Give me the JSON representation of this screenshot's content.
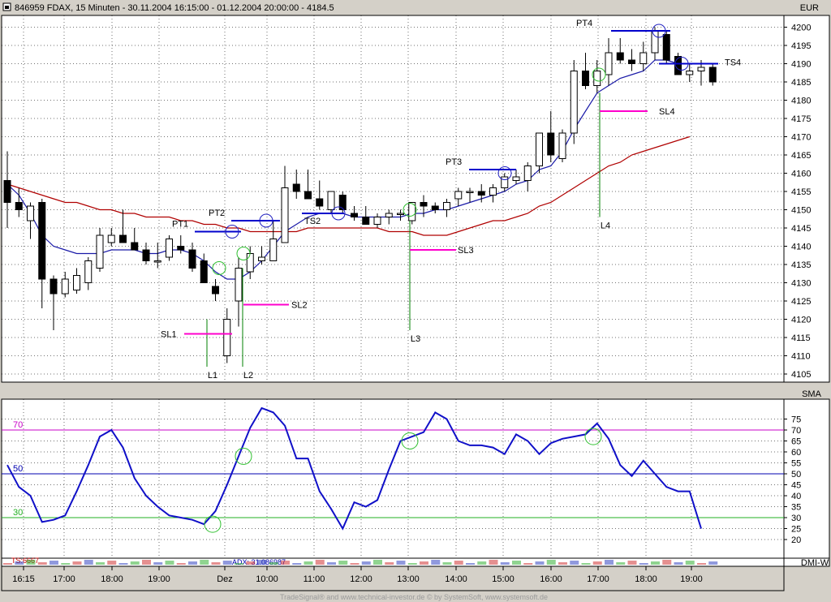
{
  "header": {
    "title": "846959  FDAX, 15 Minuten - 30.11.2004 16:15:00 - 01.12.2004 20:00:00 - 4184.5",
    "currency": "EUR",
    "indicator": "SMA",
    "bottom_indicator": "DMI-W",
    "mini_labels": [
      "TS:6667",
      "ADX: 31.086987"
    ]
  },
  "footer": "TradeSignal® and www.technical-investor.de © by SystemSoft, www.systemsoft.de",
  "colors": {
    "plot_bg": "#ffffff",
    "grid": "#000000",
    "sma_fast": "#1a1aa8",
    "sma_slow": "#b00000",
    "stop_loss": "#ff00cc",
    "profit_target": "#0000cc",
    "entry_line": "#008000",
    "rsi_line": "#1010c8",
    "level70": "#c800c8",
    "level50": "#0000b0",
    "level30": "#20b020",
    "circle_green": "#30c030",
    "circle_blue": "#2020c0"
  },
  "chart_data": [
    {
      "type": "candlestick",
      "title": "846959  FDAX, 15 Minuten",
      "y_unit": "EUR",
      "ylim": [
        4103,
        4205
      ],
      "y_ticks": [
        4105,
        4110,
        4115,
        4120,
        4125,
        4130,
        4135,
        4140,
        4145,
        4150,
        4155,
        4160,
        4165,
        4170,
        4175,
        4180,
        4185,
        4190,
        4195,
        4200
      ],
      "x_ticks": [
        "16:15",
        "17:00",
        "18:00",
        "19:00",
        "Dez",
        "10:00",
        "11:00",
        "12:00",
        "13:00",
        "14:00",
        "15:00",
        "16:00",
        "17:00",
        "18:00",
        "19:00"
      ],
      "candles": [
        {
          "o": 4158,
          "h": 4166,
          "l": 4145,
          "c": 4152
        },
        {
          "o": 4152,
          "h": 4156,
          "l": 4148,
          "c": 4150
        },
        {
          "o": 4147,
          "h": 4152,
          "l": 4142,
          "c": 4151
        },
        {
          "o": 4152,
          "h": 4153,
          "l": 4123,
          "c": 4131
        },
        {
          "o": 4131,
          "h": 4132,
          "l": 4117,
          "c": 4127
        },
        {
          "o": 4127,
          "h": 4133,
          "l": 4126,
          "c": 4131
        },
        {
          "o": 4128,
          "h": 4134,
          "l": 4127,
          "c": 4132
        },
        {
          "o": 4130,
          "h": 4137,
          "l": 4128,
          "c": 4136
        },
        {
          "o": 4134,
          "h": 4145,
          "l": 4133,
          "c": 4143
        },
        {
          "o": 4141,
          "h": 4145,
          "l": 4140,
          "c": 4143
        },
        {
          "o": 4143,
          "h": 4150,
          "l": 4141,
          "c": 4141
        },
        {
          "o": 4141,
          "h": 4145,
          "l": 4140,
          "c": 4139
        },
        {
          "o": 4139,
          "h": 4141,
          "l": 4135,
          "c": 4136
        },
        {
          "o": 4136,
          "h": 4141,
          "l": 4134,
          "c": 4136
        },
        {
          "o": 4137,
          "h": 4143,
          "l": 4136,
          "c": 4142
        },
        {
          "o": 4140,
          "h": 4143,
          "l": 4138,
          "c": 4139
        },
        {
          "o": 4139,
          "h": 4141,
          "l": 4133,
          "c": 4134
        },
        {
          "o": 4136,
          "h": 4138,
          "l": 4130,
          "c": 4130
        },
        {
          "o": 4129,
          "h": 4131,
          "l": 4125,
          "c": 4127
        },
        {
          "o": 4110,
          "h": 4123,
          "l": 4108,
          "c": 4120
        },
        {
          "o": 4125,
          "h": 4137,
          "l": 4118,
          "c": 4134
        },
        {
          "o": 4133,
          "h": 4140,
          "l": 4131,
          "c": 4138
        },
        {
          "o": 4136,
          "h": 4140,
          "l": 4135,
          "c": 4137
        },
        {
          "o": 4136,
          "h": 4147,
          "l": 4136,
          "c": 4142
        },
        {
          "o": 4141,
          "h": 4162,
          "l": 4141,
          "c": 4156
        },
        {
          "o": 4157,
          "h": 4161,
          "l": 4153,
          "c": 4155
        },
        {
          "o": 4155,
          "h": 4161,
          "l": 4153,
          "c": 4153
        },
        {
          "o": 4153,
          "h": 4158,
          "l": 4150,
          "c": 4151
        },
        {
          "o": 4150,
          "h": 4155,
          "l": 4149,
          "c": 4155
        },
        {
          "o": 4154,
          "h": 4155,
          "l": 4149,
          "c": 4150
        },
        {
          "o": 4149,
          "h": 4151,
          "l": 4147,
          "c": 4148
        },
        {
          "o": 4148,
          "h": 4151,
          "l": 4146,
          "c": 4146
        },
        {
          "o": 4146,
          "h": 4149,
          "l": 4145,
          "c": 4148
        },
        {
          "o": 4148,
          "h": 4150,
          "l": 4146,
          "c": 4149
        },
        {
          "o": 4149,
          "h": 4150,
          "l": 4147,
          "c": 4149
        },
        {
          "o": 4147,
          "h": 4152,
          "l": 4146,
          "c": 4152
        },
        {
          "o": 4152,
          "h": 4154,
          "l": 4148,
          "c": 4151
        },
        {
          "o": 4151,
          "h": 4152,
          "l": 4149,
          "c": 4150
        },
        {
          "o": 4150,
          "h": 4153,
          "l": 4148,
          "c": 4152
        },
        {
          "o": 4153,
          "h": 4156,
          "l": 4151,
          "c": 4155
        },
        {
          "o": 4155,
          "h": 4156,
          "l": 4152,
          "c": 4155
        },
        {
          "o": 4155,
          "h": 4157,
          "l": 4152,
          "c": 4154
        },
        {
          "o": 4154,
          "h": 4157,
          "l": 4152,
          "c": 4156
        },
        {
          "o": 4156,
          "h": 4160,
          "l": 4155,
          "c": 4159
        },
        {
          "o": 4158,
          "h": 4161,
          "l": 4157,
          "c": 4159
        },
        {
          "o": 4158,
          "h": 4163,
          "l": 4155,
          "c": 4162
        },
        {
          "o": 4162,
          "h": 4171,
          "l": 4160,
          "c": 4171
        },
        {
          "o": 4171,
          "h": 4177,
          "l": 4163,
          "c": 4165
        },
        {
          "o": 4164,
          "h": 4172,
          "l": 4163,
          "c": 4171
        },
        {
          "o": 4171,
          "h": 4191,
          "l": 4168,
          "c": 4188
        },
        {
          "o": 4188,
          "h": 4193,
          "l": 4183,
          "c": 4184
        },
        {
          "o": 4184,
          "h": 4191,
          "l": 4182,
          "c": 4188
        },
        {
          "o": 4187,
          "h": 4197,
          "l": 4184,
          "c": 4193
        },
        {
          "o": 4193,
          "h": 4197,
          "l": 4190,
          "c": 4191
        },
        {
          "o": 4191,
          "h": 4194,
          "l": 4188,
          "c": 4190
        },
        {
          "o": 4190,
          "h": 4196,
          "l": 4188,
          "c": 4193
        },
        {
          "o": 4193,
          "h": 4200,
          "l": 4191,
          "c": 4199
        },
        {
          "o": 4198,
          "h": 4199,
          "l": 4190,
          "c": 4191
        },
        {
          "o": 4192,
          "h": 4193,
          "l": 4187,
          "c": 4187
        },
        {
          "o": 4187,
          "h": 4190,
          "l": 4185,
          "c": 4188
        },
        {
          "o": 4188,
          "h": 4191,
          "l": 4184,
          "c": 4189
        },
        {
          "o": 4189,
          "h": 4190,
          "l": 4184,
          "c": 4185
        }
      ],
      "sma_fast": [
        4157,
        4154,
        4149,
        4143,
        4140,
        4139,
        4138,
        4138,
        4138,
        4139,
        4139,
        4139,
        4138,
        4138,
        4139,
        4139,
        4138,
        4136,
        4133,
        4131,
        4131,
        4133,
        4136,
        4140,
        4144,
        4146,
        4148,
        4149,
        4149,
        4149,
        4148,
        4148,
        4148,
        4148,
        4148,
        4149,
        4149,
        4150,
        4150,
        4151,
        4152,
        4153,
        4154,
        4155,
        4157,
        4158,
        4161,
        4162,
        4166,
        4172,
        4177,
        4182,
        4184,
        4186,
        4187,
        4188,
        4191,
        4191,
        4190,
        4190,
        4190,
        4190
      ],
      "sma_slow": [
        4157,
        4156,
        4155,
        4154,
        4153,
        4152,
        4152,
        4151,
        4150,
        4150,
        4149,
        4149,
        4148,
        4148,
        4148,
        4147,
        4147,
        4146,
        4146,
        4145,
        4145,
        4144,
        4144,
        4144,
        4144,
        4144,
        4145,
        4145,
        4145,
        4145,
        4145,
        4145,
        4145,
        4144,
        4144,
        4144,
        4143,
        4143,
        4143,
        4144,
        4145,
        4146,
        4147,
        4147,
        4148,
        4149,
        4151,
        4152,
        4154,
        4156,
        4158,
        4160,
        4162,
        4163,
        4165,
        4166,
        4167,
        4168,
        4169,
        4170
      ],
      "trade_labels": {
        "entries": [
          "L1",
          "L2",
          "L3",
          "L4"
        ],
        "stop_loss": [
          "SL1",
          "SL2",
          "SL3",
          "SL4"
        ],
        "profit_targets": [
          "PT1",
          "PT2",
          "PT3",
          "PT4"
        ],
        "trailing_stops": [
          "TS2",
          "TS4"
        ]
      },
      "trade_levels": {
        "L1": {
          "low": 4107,
          "high": 4120
        },
        "L2": {
          "low": 4107,
          "high": 4134
        },
        "L3": {
          "low": 4117,
          "high": 4147
        },
        "L4": {
          "low": 4148,
          "high": 4182
        },
        "SL1": 4116,
        "SL2": 4124,
        "SL3": 4139,
        "SL4": 4177,
        "PT1": 4144,
        "PT2": 4147,
        "PT3": 4161,
        "PT4": 4199,
        "TS2": 4149,
        "TS4": 4190
      }
    },
    {
      "type": "line",
      "ylim": [
        15,
        80
      ],
      "y_ticks": [
        20,
        25,
        30,
        35,
        40,
        45,
        50,
        55,
        60,
        65,
        70,
        75
      ],
      "levels": [
        {
          "value": 70,
          "label": "70"
        },
        {
          "value": 50,
          "label": "50"
        },
        {
          "value": 30,
          "label": "30"
        }
      ],
      "series": [
        {
          "values": [
            54,
            44,
            40,
            28,
            29,
            31,
            42,
            54,
            67,
            70,
            62,
            48,
            40,
            35,
            31,
            30,
            29,
            27,
            33,
            45,
            58,
            71,
            80,
            78,
            72,
            57,
            57,
            42,
            34,
            25,
            37,
            35,
            38,
            52,
            65,
            67,
            69,
            78,
            75,
            65,
            63,
            63,
            62,
            59,
            68,
            65,
            59,
            64,
            66,
            67,
            68,
            73,
            66,
            54,
            49,
            56,
            50,
            44,
            42,
            42,
            25
          ]
        }
      ]
    }
  ]
}
